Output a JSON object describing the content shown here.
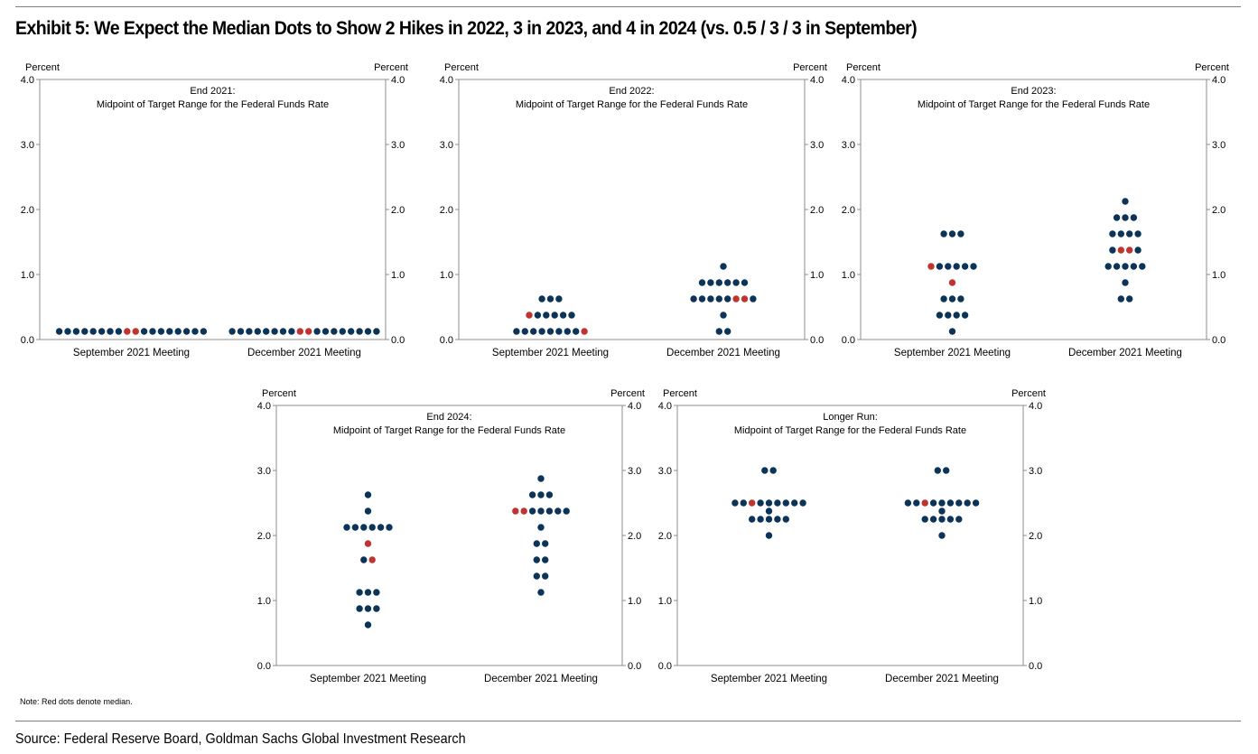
{
  "header": {
    "title": "Exhibit 5: We Expect the Median Dots to Show 2 Hikes in 2022, 3 in 2023, and 4 in 2024 (vs. 0.5 / 3 / 3 in September)"
  },
  "footer": {
    "note": "Note: Red dots denote median.",
    "source": "Source: Federal Reserve Board, Goldman Sachs Global Investment Research"
  },
  "colors": {
    "dot": "#0c3459",
    "median": "#c0332f",
    "frame": "#8c8c8c"
  },
  "chart_data": [
    {
      "type": "scatter",
      "title": [
        "End 2021:",
        "Midpoint of Target Range for the Federal Funds Rate"
      ],
      "ylabel_left": "Percent",
      "ylabel_right": "Percent",
      "ylim": [
        0,
        4
      ],
      "yticks": [
        "0.0",
        "1.0",
        "2.0",
        "3.0",
        "4.0"
      ],
      "categories": [
        "September 2021 Meeting",
        "December 2021 Meeting"
      ],
      "groups": [
        {
          "category": "September 2021 Meeting",
          "rows": [
            {
              "value": 0.125,
              "count": 18,
              "median": [
                8,
                9
              ]
            }
          ]
        },
        {
          "category": "December 2021 Meeting",
          "rows": [
            {
              "value": 0.125,
              "count": 18,
              "median": [
                8,
                9
              ]
            }
          ]
        }
      ]
    },
    {
      "type": "scatter",
      "title": [
        "End 2022:",
        "Midpoint of Target Range for the Federal Funds Rate"
      ],
      "ylabel_left": "Percent",
      "ylabel_right": "Percent",
      "ylim": [
        0,
        4
      ],
      "yticks": [
        "0.0",
        "1.0",
        "2.0",
        "3.0",
        "4.0"
      ],
      "categories": [
        "September 2021 Meeting",
        "December 2021 Meeting"
      ],
      "groups": [
        {
          "category": "September 2021 Meeting",
          "rows": [
            {
              "value": 0.125,
              "count": 9,
              "median": [
                8
              ]
            },
            {
              "value": 0.375,
              "count": 6,
              "median": [
                0
              ]
            },
            {
              "value": 0.625,
              "count": 3,
              "median": []
            }
          ]
        },
        {
          "category": "December 2021 Meeting",
          "rows": [
            {
              "value": 0.125,
              "count": 2,
              "median": []
            },
            {
              "value": 0.375,
              "count": 1,
              "median": []
            },
            {
              "value": 0.625,
              "count": 8,
              "median": [
                5,
                6
              ]
            },
            {
              "value": 0.875,
              "count": 6,
              "median": []
            },
            {
              "value": 1.125,
              "count": 1,
              "median": []
            }
          ]
        }
      ]
    },
    {
      "type": "scatter",
      "title": [
        "End 2023:",
        "Midpoint of Target Range for the Federal Funds Rate"
      ],
      "ylabel_left": "Percent",
      "ylabel_right": "Percent",
      "ylim": [
        0,
        4
      ],
      "yticks": [
        "0.0",
        "1.0",
        "2.0",
        "3.0",
        "4.0"
      ],
      "categories": [
        "September 2021 Meeting",
        "December 2021 Meeting"
      ],
      "groups": [
        {
          "category": "September 2021 Meeting",
          "rows": [
            {
              "value": 0.125,
              "count": 1,
              "median": []
            },
            {
              "value": 0.375,
              "count": 4,
              "median": []
            },
            {
              "value": 0.625,
              "count": 3,
              "median": []
            },
            {
              "value": 0.875,
              "count": 1,
              "median": [
                0
              ]
            },
            {
              "value": 1.125,
              "count": 6,
              "median": [
                0
              ]
            },
            {
              "value": 1.625,
              "count": 3,
              "median": []
            }
          ]
        },
        {
          "category": "December 2021 Meeting",
          "rows": [
            {
              "value": 0.625,
              "count": 2,
              "median": []
            },
            {
              "value": 0.875,
              "count": 1,
              "median": []
            },
            {
              "value": 1.125,
              "count": 5,
              "median": []
            },
            {
              "value": 1.375,
              "count": 4,
              "median": [
                1,
                2
              ]
            },
            {
              "value": 1.625,
              "count": 4,
              "median": []
            },
            {
              "value": 1.875,
              "count": 3,
              "median": []
            },
            {
              "value": 2.125,
              "count": 1,
              "median": []
            }
          ]
        }
      ]
    },
    {
      "type": "scatter",
      "title": [
        "End 2024:",
        "Midpoint of Target Range for the Federal Funds Rate"
      ],
      "ylabel_left": "Percent",
      "ylabel_right": "Percent",
      "ylim": [
        0,
        4
      ],
      "yticks": [
        "0.0",
        "1.0",
        "2.0",
        "3.0",
        "4.0"
      ],
      "categories": [
        "September 2021 Meeting",
        "December 2021 Meeting"
      ],
      "groups": [
        {
          "category": "September 2021 Meeting",
          "rows": [
            {
              "value": 0.625,
              "count": 1,
              "median": []
            },
            {
              "value": 0.875,
              "count": 3,
              "median": []
            },
            {
              "value": 1.125,
              "count": 3,
              "median": []
            },
            {
              "value": 1.625,
              "count": 2,
              "median": [
                1
              ]
            },
            {
              "value": 1.875,
              "count": 1,
              "median": [
                0
              ]
            },
            {
              "value": 2.125,
              "count": 6,
              "median": []
            },
            {
              "value": 2.375,
              "count": 1,
              "median": []
            },
            {
              "value": 2.625,
              "count": 1,
              "median": []
            }
          ]
        },
        {
          "category": "December 2021 Meeting",
          "rows": [
            {
              "value": 1.125,
              "count": 1,
              "median": []
            },
            {
              "value": 1.375,
              "count": 2,
              "median": []
            },
            {
              "value": 1.625,
              "count": 2,
              "median": []
            },
            {
              "value": 1.875,
              "count": 2,
              "median": []
            },
            {
              "value": 2.125,
              "count": 1,
              "median": []
            },
            {
              "value": 2.375,
              "count": 7,
              "median": [
                0,
                1
              ]
            },
            {
              "value": 2.625,
              "count": 3,
              "median": []
            },
            {
              "value": 2.875,
              "count": 1,
              "median": []
            }
          ]
        }
      ]
    },
    {
      "type": "scatter",
      "title": [
        "Longer Run:",
        "Midpoint of Target Range for the Federal Funds Rate"
      ],
      "ylabel_left": "Percent",
      "ylabel_right": "Percent",
      "ylim": [
        0,
        4
      ],
      "yticks": [
        "0.0",
        "1.0",
        "2.0",
        "3.0",
        "4.0"
      ],
      "categories": [
        "September 2021 Meeting",
        "December 2021 Meeting"
      ],
      "groups": [
        {
          "category": "September 2021 Meeting",
          "rows": [
            {
              "value": 2.0,
              "count": 1,
              "median": []
            },
            {
              "value": 2.25,
              "count": 5,
              "median": []
            },
            {
              "value": 2.375,
              "count": 1,
              "median": []
            },
            {
              "value": 2.5,
              "count": 9,
              "median": [
                2
              ]
            },
            {
              "value": 3.0,
              "count": 2,
              "median": []
            }
          ]
        },
        {
          "category": "December 2021 Meeting",
          "rows": [
            {
              "value": 2.0,
              "count": 1,
              "median": []
            },
            {
              "value": 2.25,
              "count": 5,
              "median": []
            },
            {
              "value": 2.375,
              "count": 1,
              "median": []
            },
            {
              "value": 2.5,
              "count": 9,
              "median": [
                2
              ]
            },
            {
              "value": 3.0,
              "count": 2,
              "median": []
            }
          ]
        }
      ]
    }
  ]
}
